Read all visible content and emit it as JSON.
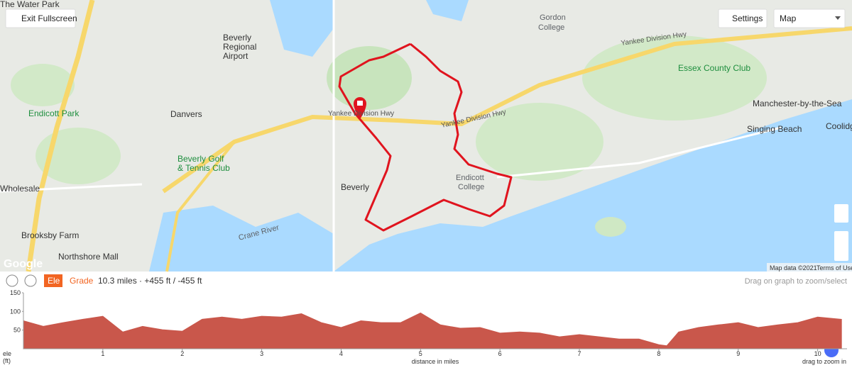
{
  "controls": {
    "exit_fullscreen": "Exit Fullscreen",
    "settings": "Settings",
    "map_type": "Map"
  },
  "map": {
    "labels": [
      "The Water Park",
      "Endicott Park",
      "Danvers",
      "Beverly",
      "Regional",
      "Airport",
      "Yankee Division Hwy",
      "Yankee Division Hwy",
      "Yankee Division Hwy",
      "Beverly Golf",
      "& Tennis Club",
      "Beverly",
      "Endicott",
      "College",
      "Gordon",
      "College",
      "Essex County Club",
      "Manchester-by-the-Sea",
      "Singing Beach",
      "Coolidg",
      "Wholesale",
      "Brooksby Farm",
      "Northshore Mall",
      "Crane River",
      "Google"
    ],
    "attribution": [
      "Map data ©2021",
      "Terms of Use"
    ]
  },
  "profile_bar": {
    "tabs": [
      "Ele",
      "Grade"
    ],
    "summary": "10.3 miles · +455 ft / -455 ft",
    "hint": "Drag on graph to zoom/select",
    "zoom_hint": "drag to zoom in"
  },
  "chart_data": {
    "type": "area",
    "xlabel": "distance in miles",
    "ylabel": [
      "ele",
      "(ft)"
    ],
    "color": "#c9574b",
    "x": [
      0,
      0.25,
      0.5,
      0.75,
      1,
      1.25,
      1.5,
      1.75,
      2,
      2.25,
      2.5,
      2.75,
      3,
      3.25,
      3.5,
      3.75,
      4,
      4.25,
      4.5,
      4.75,
      5,
      5.25,
      5.5,
      5.75,
      6,
      6.25,
      6.5,
      6.75,
      7,
      7.25,
      7.5,
      7.75,
      8,
      8.1,
      8.25,
      8.5,
      8.75,
      9,
      9.25,
      9.5,
      9.75,
      10,
      10.3
    ],
    "values": [
      75,
      60,
      70,
      79,
      87,
      45,
      60,
      51,
      47,
      79,
      85,
      79,
      87,
      85,
      94,
      70,
      57,
      75,
      70,
      70,
      96,
      64,
      55,
      57,
      42,
      45,
      42,
      32,
      38,
      32,
      26,
      26,
      11,
      8,
      45,
      57,
      64,
      70,
      57,
      64,
      70,
      85,
      79
    ],
    "xlim": [
      0,
      10.37
    ],
    "xticks": [
      1,
      2,
      3,
      4,
      5,
      6,
      7,
      8,
      9,
      10
    ],
    "ylim": [
      0,
      150
    ],
    "yticks": [
      50,
      100,
      150
    ]
  }
}
